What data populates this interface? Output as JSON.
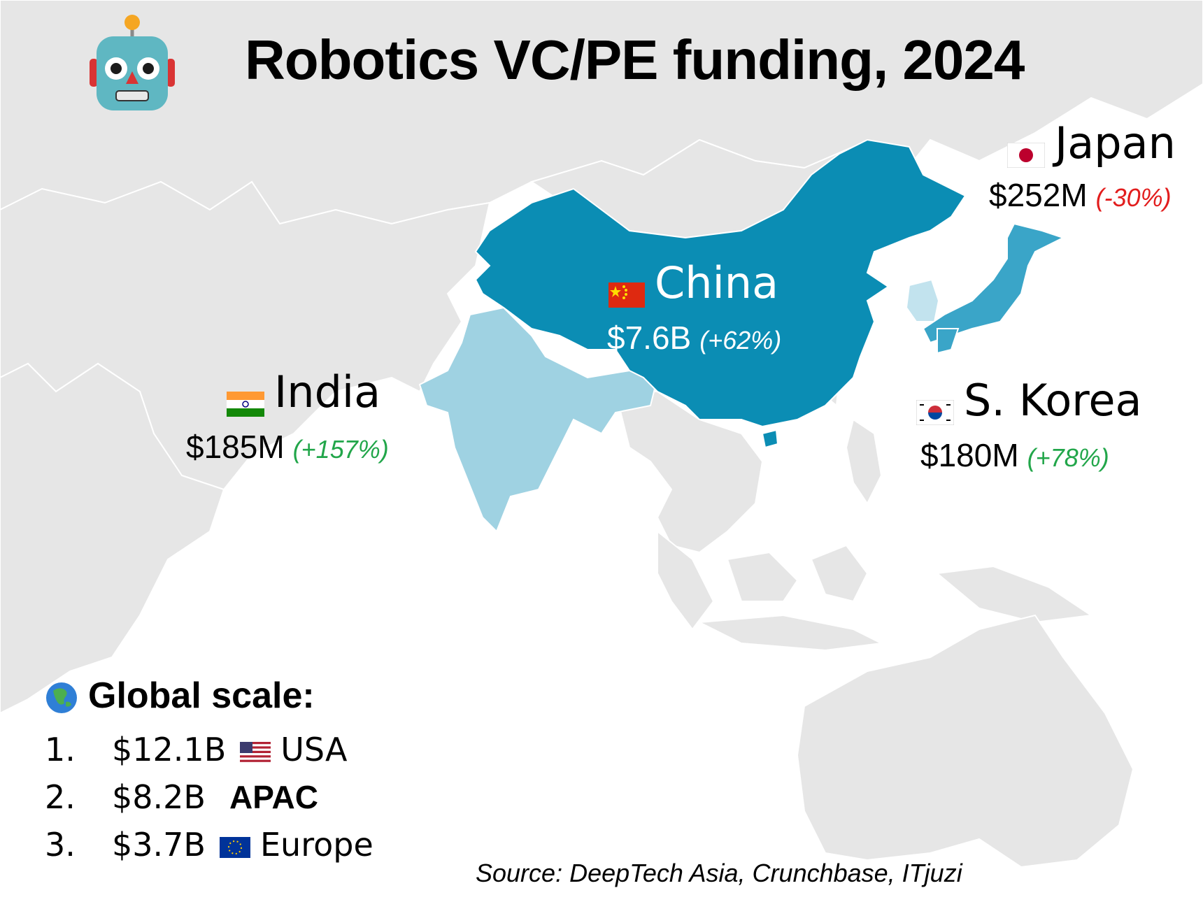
{
  "title": "Robotics VC/PE funding, 2024",
  "colors": {
    "china": "#0b8db4",
    "japan": "#3aa5c8",
    "india": "#9fd2e2",
    "korea": "#c2e3ee",
    "land": "#e6e6e6",
    "border": "#ffffff",
    "positive": "#22a64a",
    "negative": "#e21d1d"
  },
  "countries": {
    "china": {
      "name": "China",
      "value": "$7.6B",
      "change": "(+62%)",
      "flag": "china-flag"
    },
    "japan": {
      "name": "Japan",
      "value": "$252M",
      "change": "(-30%)",
      "flag": "japan-flag"
    },
    "india": {
      "name": "India",
      "value": "$185M",
      "change": "(+157%)",
      "flag": "india-flag"
    },
    "korea": {
      "name": "S. Korea",
      "value": "$180M",
      "change": "(+78%)",
      "flag": "south-korea-flag"
    }
  },
  "global": {
    "title": "Global scale:",
    "icon": "globe-asia-icon",
    "items": [
      {
        "rank": "1.",
        "amount": "$12.1B",
        "region": "USA",
        "icon": "usa-flag"
      },
      {
        "rank": "2.",
        "amount": "$8.2B",
        "region": "APAC",
        "icon": ""
      },
      {
        "rank": "3.",
        "amount": "$3.7B",
        "region": "Europe",
        "icon": "eu-flag"
      }
    ]
  },
  "source": "Source: DeepTech Asia, Crunchbase, ITjuzi"
}
